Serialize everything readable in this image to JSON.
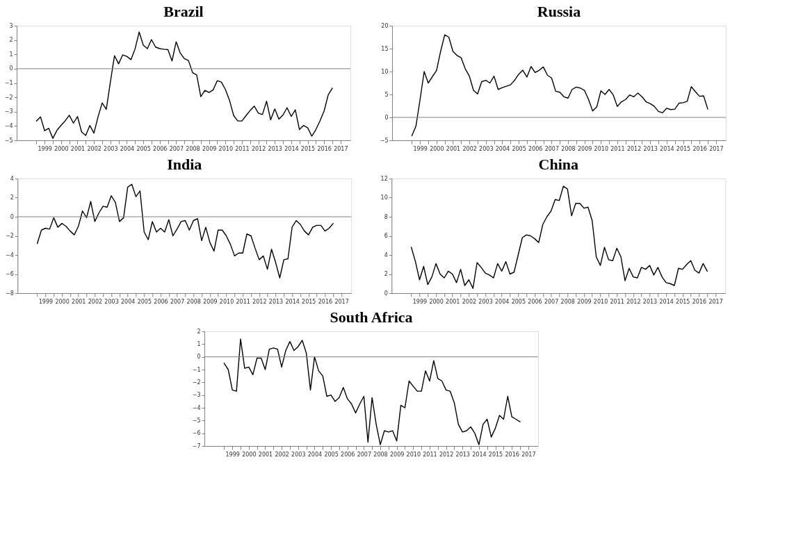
{
  "chart_data": [
    {
      "type": "line",
      "title": "Brazil",
      "x": [
        1999,
        1999.25,
        1999.5,
        1999.75,
        2000,
        2000.25,
        2000.5,
        2000.75,
        2001,
        2001.25,
        2001.5,
        2001.75,
        2002,
        2002.25,
        2002.5,
        2002.75,
        2003,
        2003.25,
        2003.5,
        2003.75,
        2004,
        2004.25,
        2004.5,
        2004.75,
        2005,
        2005.25,
        2005.5,
        2005.75,
        2006,
        2006.25,
        2006.5,
        2006.75,
        2007,
        2007.25,
        2007.5,
        2007.75,
        2008,
        2008.25,
        2008.5,
        2008.75,
        2009,
        2009.25,
        2009.5,
        2009.75,
        2010,
        2010.25,
        2010.5,
        2010.75,
        2011,
        2011.25,
        2011.5,
        2011.75,
        2012,
        2012.25,
        2012.5,
        2012.75,
        2013,
        2013.25,
        2013.5,
        2013.75,
        2014,
        2014.25,
        2014.5,
        2014.75,
        2015,
        2015.25,
        2015.5,
        2015.75,
        2016,
        2016.25,
        2016.5,
        2016.75,
        2017
      ],
      "color": "#000000",
      "xlim": [
        1997.8,
        2018.1
      ],
      "ylim": [
        -5,
        3
      ],
      "yticks": [
        -5,
        -4,
        -3,
        -2,
        -1,
        0,
        1,
        2,
        3
      ],
      "xticks": [
        {
          "value": 1999,
          "label": null
        },
        {
          "value": 1999.5,
          "label": "1999"
        },
        {
          "value": 2000,
          "label": null
        },
        {
          "value": 2000.5,
          "label": "2000"
        },
        {
          "value": 2001,
          "label": null
        },
        {
          "value": 2001.5,
          "label": "2001"
        },
        {
          "value": 2002,
          "label": null
        },
        {
          "value": 2002.5,
          "label": "2002"
        },
        {
          "value": 2003,
          "label": null
        },
        {
          "value": 2003.5,
          "label": "2003"
        },
        {
          "value": 2004,
          "label": null
        },
        {
          "value": 2004.5,
          "label": "2004"
        },
        {
          "value": 2005,
          "label": null
        },
        {
          "value": 2005.5,
          "label": "2005"
        },
        {
          "value": 2006,
          "label": null
        },
        {
          "value": 2006.5,
          "label": "2006"
        },
        {
          "value": 2007,
          "label": null
        },
        {
          "value": 2007.5,
          "label": "2007"
        },
        {
          "value": 2008,
          "label": null
        },
        {
          "value": 2008.5,
          "label": "2008"
        },
        {
          "value": 2009,
          "label": null
        },
        {
          "value": 2009.5,
          "label": "2009"
        },
        {
          "value": 2010,
          "label": null
        },
        {
          "value": 2010.5,
          "label": "2010"
        },
        {
          "value": 2011,
          "label": null
        },
        {
          "value": 2011.5,
          "label": "2011"
        },
        {
          "value": 2012,
          "label": null
        },
        {
          "value": 2012.5,
          "label": "2012"
        },
        {
          "value": 2013,
          "label": null
        },
        {
          "value": 2013.5,
          "label": "2013"
        },
        {
          "value": 2014,
          "label": null
        },
        {
          "value": 2014.5,
          "label": "2014"
        },
        {
          "value": 2015,
          "label": null
        },
        {
          "value": 2015.5,
          "label": "2015"
        },
        {
          "value": 2016,
          "label": null
        },
        {
          "value": 2016.5,
          "label": "2016"
        },
        {
          "value": 2017,
          "label": null
        },
        {
          "value": 2017.5,
          "label": "2017"
        }
      ],
      "ref_lines": [
        {
          "axis": "y",
          "value": 0,
          "color": "#808080"
        }
      ],
      "values": [
        -3.65,
        -3.36,
        -4.33,
        -4.16,
        -4.86,
        -4.3,
        -3.96,
        -3.64,
        -3.25,
        -3.8,
        -3.34,
        -4.42,
        -4.66,
        -3.96,
        -4.5,
        -3.36,
        -2.39,
        -2.84,
        -0.93,
        0.91,
        0.34,
        0.96,
        0.86,
        0.63,
        1.38,
        2.56,
        1.64,
        1.4,
        2.03,
        1.51,
        1.4,
        1.36,
        1.33,
        0.54,
        1.88,
        1.09,
        0.7,
        0.57,
        -0.28,
        -0.44,
        -1.95,
        -1.51,
        -1.66,
        -1.48,
        -0.84,
        -0.93,
        -1.46,
        -2.22,
        -3.28,
        -3.65,
        -3.65,
        -3.28,
        -2.92,
        -2.61,
        -3.1,
        -3.2,
        -2.27,
        -3.57,
        -2.81,
        -3.52,
        -3.23,
        -2.73,
        -3.33,
        -2.87,
        -4.25,
        -3.96,
        -4.12,
        -4.71,
        -4.25,
        -3.64,
        -2.95,
        -1.83,
        -1.36
      ]
    },
    {
      "type": "line",
      "title": "Russia",
      "x": [
        1999,
        1999.25,
        1999.5,
        1999.75,
        2000,
        2000.25,
        2000.5,
        2000.75,
        2001,
        2001.25,
        2001.5,
        2001.75,
        2002,
        2002.25,
        2002.5,
        2002.75,
        2003,
        2003.25,
        2003.5,
        2003.75,
        2004,
        2004.25,
        2004.5,
        2004.75,
        2005,
        2005.25,
        2005.5,
        2005.75,
        2006,
        2006.25,
        2006.5,
        2006.75,
        2007,
        2007.25,
        2007.5,
        2007.75,
        2008,
        2008.25,
        2008.5,
        2008.75,
        2009,
        2009.25,
        2009.5,
        2009.75,
        2010,
        2010.25,
        2010.5,
        2010.75,
        2011,
        2011.25,
        2011.5,
        2011.75,
        2012,
        2012.25,
        2012.5,
        2012.75,
        2013,
        2013.25,
        2013.5,
        2013.75,
        2014,
        2014.25,
        2014.5,
        2014.75,
        2015,
        2015.25,
        2015.5,
        2015.75,
        2016,
        2016.25,
        2016.5,
        2016.75,
        2017
      ],
      "color": "#000000",
      "xlim": [
        1997.8,
        2018.1
      ],
      "ylim": [
        -5,
        20
      ],
      "yticks": [
        -5,
        0,
        5,
        10,
        15,
        20
      ],
      "xticks": [
        {
          "value": 1999,
          "label": null
        },
        {
          "value": 1999.5,
          "label": "1999"
        },
        {
          "value": 2000,
          "label": null
        },
        {
          "value": 2000.5,
          "label": "2000"
        },
        {
          "value": 2001,
          "label": null
        },
        {
          "value": 2001.5,
          "label": "2001"
        },
        {
          "value": 2002,
          "label": null
        },
        {
          "value": 2002.5,
          "label": "2002"
        },
        {
          "value": 2003,
          "label": null
        },
        {
          "value": 2003.5,
          "label": "2003"
        },
        {
          "value": 2004,
          "label": null
        },
        {
          "value": 2004.5,
          "label": "2004"
        },
        {
          "value": 2005,
          "label": null
        },
        {
          "value": 2005.5,
          "label": "2005"
        },
        {
          "value": 2006,
          "label": null
        },
        {
          "value": 2006.5,
          "label": "2006"
        },
        {
          "value": 2007,
          "label": null
        },
        {
          "value": 2007.5,
          "label": "2007"
        },
        {
          "value": 2008,
          "label": null
        },
        {
          "value": 2008.5,
          "label": "2008"
        },
        {
          "value": 2009,
          "label": null
        },
        {
          "value": 2009.5,
          "label": "2009"
        },
        {
          "value": 2010,
          "label": null
        },
        {
          "value": 2010.5,
          "label": "2010"
        },
        {
          "value": 2011,
          "label": null
        },
        {
          "value": 2011.5,
          "label": "2011"
        },
        {
          "value": 2012,
          "label": null
        },
        {
          "value": 2012.5,
          "label": "2012"
        },
        {
          "value": 2013,
          "label": null
        },
        {
          "value": 2013.5,
          "label": "2013"
        },
        {
          "value": 2014,
          "label": null
        },
        {
          "value": 2014.5,
          "label": "2014"
        },
        {
          "value": 2015,
          "label": null
        },
        {
          "value": 2015.5,
          "label": "2015"
        },
        {
          "value": 2016,
          "label": null
        },
        {
          "value": 2016.5,
          "label": "2016"
        },
        {
          "value": 2017,
          "label": null
        },
        {
          "value": 2017.5,
          "label": "2017"
        }
      ],
      "ref_lines": [
        {
          "axis": "y",
          "value": 0,
          "color": "#808080"
        }
      ],
      "values": [
        -4.0,
        -1.9,
        3.9,
        10.0,
        7.5,
        8.9,
        10.2,
        14.4,
        18.0,
        17.5,
        14.4,
        13.5,
        13.0,
        10.6,
        9.0,
        5.9,
        5.1,
        7.8,
        8.1,
        7.5,
        9.0,
        6.1,
        6.5,
        6.8,
        7.1,
        8.1,
        9.4,
        10.3,
        8.8,
        11.1,
        9.8,
        10.3,
        11.0,
        9.2,
        8.6,
        5.7,
        5.5,
        4.5,
        4.2,
        6.1,
        6.6,
        6.4,
        5.9,
        3.9,
        1.4,
        2.3,
        5.8,
        5.0,
        6.1,
        4.9,
        2.4,
        3.4,
        3.9,
        4.9,
        4.5,
        5.3,
        4.5,
        3.4,
        3.0,
        2.4,
        1.3,
        1.0,
        2.0,
        1.7,
        1.8,
        3.1,
        3.2,
        3.5,
        6.7,
        5.6,
        4.6,
        4.7,
        1.8
      ]
    },
    {
      "type": "line",
      "title": "India",
      "x": [
        1999,
        1999.25,
        1999.5,
        1999.75,
        2000,
        2000.25,
        2000.5,
        2000.75,
        2001,
        2001.25,
        2001.5,
        2001.75,
        2002,
        2002.25,
        2002.5,
        2002.75,
        2003,
        2003.25,
        2003.5,
        2003.75,
        2004,
        2004.25,
        2004.5,
        2004.75,
        2005,
        2005.25,
        2005.5,
        2005.75,
        2006,
        2006.25,
        2006.5,
        2006.75,
        2007,
        2007.25,
        2007.5,
        2007.75,
        2008,
        2008.25,
        2008.5,
        2008.75,
        2009,
        2009.25,
        2009.5,
        2009.75,
        2010,
        2010.25,
        2010.5,
        2010.75,
        2011,
        2011.25,
        2011.5,
        2011.75,
        2012,
        2012.25,
        2012.5,
        2012.75,
        2013,
        2013.25,
        2013.5,
        2013.75,
        2014,
        2014.25,
        2014.5,
        2014.75,
        2015,
        2015.25,
        2015.5,
        2015.75,
        2016,
        2016.25,
        2016.5,
        2016.75,
        2017
      ],
      "color": "#000000",
      "xlim": [
        1997.8,
        2018.1
      ],
      "ylim": [
        -8,
        4
      ],
      "yticks": [
        -8,
        -6,
        -4,
        -2,
        0,
        2,
        4
      ],
      "xticks": [
        {
          "value": 1999,
          "label": null
        },
        {
          "value": 1999.5,
          "label": "1999"
        },
        {
          "value": 2000,
          "label": null
        },
        {
          "value": 2000.5,
          "label": "2000"
        },
        {
          "value": 2001,
          "label": null
        },
        {
          "value": 2001.5,
          "label": "2001"
        },
        {
          "value": 2002,
          "label": null
        },
        {
          "value": 2002.5,
          "label": "2002"
        },
        {
          "value": 2003,
          "label": null
        },
        {
          "value": 2003.5,
          "label": "2003"
        },
        {
          "value": 2004,
          "label": null
        },
        {
          "value": 2004.5,
          "label": "2004"
        },
        {
          "value": 2005,
          "label": null
        },
        {
          "value": 2005.5,
          "label": "2005"
        },
        {
          "value": 2006,
          "label": null
        },
        {
          "value": 2006.5,
          "label": "2006"
        },
        {
          "value": 2007,
          "label": null
        },
        {
          "value": 2007.5,
          "label": "2007"
        },
        {
          "value": 2008,
          "label": null
        },
        {
          "value": 2008.5,
          "label": "2008"
        },
        {
          "value": 2009,
          "label": null
        },
        {
          "value": 2009.5,
          "label": "2009"
        },
        {
          "value": 2010,
          "label": null
        },
        {
          "value": 2010.5,
          "label": "2010"
        },
        {
          "value": 2011,
          "label": null
        },
        {
          "value": 2011.5,
          "label": "2011"
        },
        {
          "value": 2012,
          "label": null
        },
        {
          "value": 2012.5,
          "label": "2012"
        },
        {
          "value": 2013,
          "label": null
        },
        {
          "value": 2013.5,
          "label": "2013"
        },
        {
          "value": 2014,
          "label": null
        },
        {
          "value": 2014.5,
          "label": "2014"
        },
        {
          "value": 2015,
          "label": null
        },
        {
          "value": 2015.5,
          "label": "2015"
        },
        {
          "value": 2016,
          "label": null
        },
        {
          "value": 2016.5,
          "label": "2016"
        },
        {
          "value": 2017,
          "label": null
        },
        {
          "value": 2017.5,
          "label": "2017"
        }
      ],
      "ref_lines": [
        {
          "axis": "y",
          "value": 0,
          "color": "#808080"
        }
      ],
      "values": [
        -2.8,
        -1.4,
        -1.2,
        -1.3,
        -0.1,
        -1.1,
        -0.7,
        -1.0,
        -1.5,
        -1.9,
        -1.0,
        0.6,
        -0.1,
        1.6,
        -0.5,
        0.4,
        1.1,
        1.0,
        2.2,
        1.5,
        -0.5,
        -0.1,
        3.1,
        3.4,
        2.1,
        2.7,
        -1.6,
        -2.4,
        -0.5,
        -1.6,
        -1.2,
        -1.6,
        -0.3,
        -2.0,
        -1.3,
        -0.5,
        -0.4,
        -1.4,
        -0.4,
        -0.2,
        -2.5,
        -1.1,
        -2.7,
        -3.6,
        -1.4,
        -1.4,
        -2.0,
        -2.9,
        -4.1,
        -3.8,
        -3.8,
        -1.8,
        -2.0,
        -3.3,
        -4.5,
        -4.1,
        -5.5,
        -3.4,
        -4.8,
        -6.4,
        -4.5,
        -4.4,
        -1.1,
        -0.4,
        -0.8,
        -1.5,
        -1.9,
        -1.1,
        -0.9,
        -0.9,
        -1.5,
        -1.2,
        -0.7
      ]
    },
    {
      "type": "line",
      "title": "China",
      "x": [
        1999,
        1999.25,
        1999.5,
        1999.75,
        2000,
        2000.25,
        2000.5,
        2000.75,
        2001,
        2001.25,
        2001.5,
        2001.75,
        2002,
        2002.25,
        2002.5,
        2002.75,
        2003,
        2003.25,
        2003.5,
        2003.75,
        2004,
        2004.25,
        2004.5,
        2004.75,
        2005,
        2005.25,
        2005.5,
        2005.75,
        2006,
        2006.25,
        2006.5,
        2006.75,
        2007,
        2007.25,
        2007.5,
        2007.75,
        2008,
        2008.25,
        2008.5,
        2008.75,
        2009,
        2009.25,
        2009.5,
        2009.75,
        2010,
        2010.25,
        2010.5,
        2010.75,
        2011,
        2011.25,
        2011.5,
        2011.75,
        2012,
        2012.25,
        2012.5,
        2012.75,
        2013,
        2013.25,
        2013.5,
        2013.75,
        2014,
        2014.25,
        2014.5,
        2014.75,
        2015,
        2015.25,
        2015.5,
        2015.75,
        2016,
        2016.25,
        2016.5,
        2016.75,
        2017
      ],
      "color": "#000000",
      "xlim": [
        1997.8,
        2018.1
      ],
      "ylim": [
        0,
        12
      ],
      "yticks": [
        0,
        2,
        4,
        6,
        8,
        10,
        12
      ],
      "xticks": [
        {
          "value": 1999,
          "label": null
        },
        {
          "value": 1999.5,
          "label": "1999"
        },
        {
          "value": 2000,
          "label": null
        },
        {
          "value": 2000.5,
          "label": "2000"
        },
        {
          "value": 2001,
          "label": null
        },
        {
          "value": 2001.5,
          "label": "2001"
        },
        {
          "value": 2002,
          "label": null
        },
        {
          "value": 2002.5,
          "label": "2002"
        },
        {
          "value": 2003,
          "label": null
        },
        {
          "value": 2003.5,
          "label": "2003"
        },
        {
          "value": 2004,
          "label": null
        },
        {
          "value": 2004.5,
          "label": "2004"
        },
        {
          "value": 2005,
          "label": null
        },
        {
          "value": 2005.5,
          "label": "2005"
        },
        {
          "value": 2006,
          "label": null
        },
        {
          "value": 2006.5,
          "label": "2006"
        },
        {
          "value": 2007,
          "label": null
        },
        {
          "value": 2007.5,
          "label": "2007"
        },
        {
          "value": 2008,
          "label": null
        },
        {
          "value": 2008.5,
          "label": "2008"
        },
        {
          "value": 2009,
          "label": null
        },
        {
          "value": 2009.5,
          "label": "2009"
        },
        {
          "value": 2010,
          "label": null
        },
        {
          "value": 2010.5,
          "label": "2010"
        },
        {
          "value": 2011,
          "label": null
        },
        {
          "value": 2011.5,
          "label": "2011"
        },
        {
          "value": 2012,
          "label": null
        },
        {
          "value": 2012.5,
          "label": "2012"
        },
        {
          "value": 2013,
          "label": null
        },
        {
          "value": 2013.5,
          "label": "2013"
        },
        {
          "value": 2014,
          "label": null
        },
        {
          "value": 2014.5,
          "label": "2014"
        },
        {
          "value": 2015,
          "label": null
        },
        {
          "value": 2015.5,
          "label": "2015"
        },
        {
          "value": 2016,
          "label": null
        },
        {
          "value": 2016.5,
          "label": "2016"
        },
        {
          "value": 2017,
          "label": null
        },
        {
          "value": 2017.5,
          "label": "2017"
        }
      ],
      "values": [
        4.8,
        3.3,
        1.4,
        2.8,
        0.9,
        1.7,
        3.1,
        2.0,
        1.6,
        2.3,
        2.0,
        1.1,
        2.5,
        0.8,
        1.4,
        0.5,
        3.2,
        2.7,
        2.1,
        1.9,
        1.6,
        3.1,
        2.3,
        3.3,
        2.0,
        2.2,
        4.0,
        5.8,
        6.1,
        6.0,
        5.7,
        5.3,
        7.2,
        8.0,
        8.6,
        9.8,
        9.7,
        11.2,
        10.9,
        8.1,
        9.4,
        9.4,
        8.9,
        9.0,
        7.6,
        3.8,
        2.9,
        4.8,
        3.5,
        3.4,
        4.7,
        3.8,
        1.3,
        2.6,
        1.7,
        1.6,
        2.7,
        2.5,
        2.9,
        1.9,
        2.7,
        1.7,
        1.1,
        1.0,
        0.8,
        2.6,
        2.5,
        3.0,
        3.4,
        2.4,
        2.1,
        3.1,
        2.3
      ]
    },
    {
      "type": "line",
      "title": "South Africa",
      "x": [
        1999,
        1999.25,
        1999.5,
        1999.75,
        2000,
        2000.25,
        2000.5,
        2000.75,
        2001,
        2001.25,
        2001.5,
        2001.75,
        2002,
        2002.25,
        2002.5,
        2002.75,
        2003,
        2003.25,
        2003.5,
        2003.75,
        2004,
        2004.25,
        2004.5,
        2004.75,
        2005,
        2005.25,
        2005.5,
        2005.75,
        2006,
        2006.25,
        2006.5,
        2006.75,
        2007,
        2007.25,
        2007.5,
        2007.75,
        2008,
        2008.25,
        2008.5,
        2008.75,
        2009,
        2009.25,
        2009.5,
        2009.75,
        2010,
        2010.25,
        2010.5,
        2010.75,
        2011,
        2011.25,
        2011.5,
        2011.75,
        2012,
        2012.25,
        2012.5,
        2012.75,
        2013,
        2013.25,
        2013.5,
        2013.75,
        2014,
        2014.25,
        2014.5,
        2014.75,
        2015,
        2015.25,
        2015.5,
        2015.75,
        2016,
        2016.25,
        2016.5,
        2016.75,
        2017
      ],
      "color": "#000000",
      "xlim": [
        1997.8,
        2018.1
      ],
      "ylim": [
        -7,
        2
      ],
      "yticks": [
        -7,
        -6,
        -5,
        -4,
        -3,
        -2,
        -1,
        0,
        1,
        2
      ],
      "xticks": [
        {
          "value": 1999,
          "label": null
        },
        {
          "value": 1999.5,
          "label": "1999"
        },
        {
          "value": 2000,
          "label": null
        },
        {
          "value": 2000.5,
          "label": "2000"
        },
        {
          "value": 2001,
          "label": null
        },
        {
          "value": 2001.5,
          "label": "2001"
        },
        {
          "value": 2002,
          "label": null
        },
        {
          "value": 2002.5,
          "label": "2002"
        },
        {
          "value": 2003,
          "label": null
        },
        {
          "value": 2003.5,
          "label": "2003"
        },
        {
          "value": 2004,
          "label": null
        },
        {
          "value": 2004.5,
          "label": "2004"
        },
        {
          "value": 2005,
          "label": null
        },
        {
          "value": 2005.5,
          "label": "2005"
        },
        {
          "value": 2006,
          "label": null
        },
        {
          "value": 2006.5,
          "label": "2006"
        },
        {
          "value": 2007,
          "label": null
        },
        {
          "value": 2007.5,
          "label": "2007"
        },
        {
          "value": 2008,
          "label": null
        },
        {
          "value": 2008.5,
          "label": "2008"
        },
        {
          "value": 2009,
          "label": null
        },
        {
          "value": 2009.5,
          "label": "2009"
        },
        {
          "value": 2010,
          "label": null
        },
        {
          "value": 2010.5,
          "label": "2010"
        },
        {
          "value": 2011,
          "label": null
        },
        {
          "value": 2011.5,
          "label": "2011"
        },
        {
          "value": 2012,
          "label": null
        },
        {
          "value": 2012.5,
          "label": "2012"
        },
        {
          "value": 2013,
          "label": null
        },
        {
          "value": 2013.5,
          "label": "2013"
        },
        {
          "value": 2014,
          "label": null
        },
        {
          "value": 2014.5,
          "label": "2014"
        },
        {
          "value": 2015,
          "label": null
        },
        {
          "value": 2015.5,
          "label": "2015"
        },
        {
          "value": 2016,
          "label": null
        },
        {
          "value": 2016.5,
          "label": "2016"
        },
        {
          "value": 2017,
          "label": null
        },
        {
          "value": 2017.5,
          "label": "2017"
        }
      ],
      "ref_lines": [
        {
          "axis": "y",
          "value": 0,
          "color": "#808080"
        }
      ],
      "values": [
        -0.5,
        -1.0,
        -2.6,
        -2.7,
        1.4,
        -0.9,
        -0.8,
        -1.4,
        -0.1,
        -0.1,
        -1.0,
        0.6,
        0.7,
        0.6,
        -0.8,
        0.5,
        1.2,
        0.5,
        0.8,
        1.3,
        0.3,
        -2.6,
        0.0,
        -1.1,
        -1.5,
        -3.1,
        -3.0,
        -3.5,
        -3.2,
        -2.4,
        -3.3,
        -3.7,
        -4.4,
        -3.7,
        -3.1,
        -6.7,
        -3.2,
        -5.3,
        -6.9,
        -5.8,
        -5.9,
        -5.8,
        -6.6,
        -3.8,
        -4.0,
        -1.9,
        -2.3,
        -2.7,
        -2.7,
        -1.1,
        -1.9,
        -0.3,
        -1.7,
        -1.9,
        -2.6,
        -2.7,
        -3.6,
        -5.3,
        -5.9,
        -5.8,
        -5.5,
        -6.0,
        -6.9,
        -5.3,
        -4.9,
        -6.3,
        -5.6,
        -4.6,
        -4.9,
        -3.1,
        -4.7,
        -4.9,
        -5.1
      ]
    }
  ]
}
